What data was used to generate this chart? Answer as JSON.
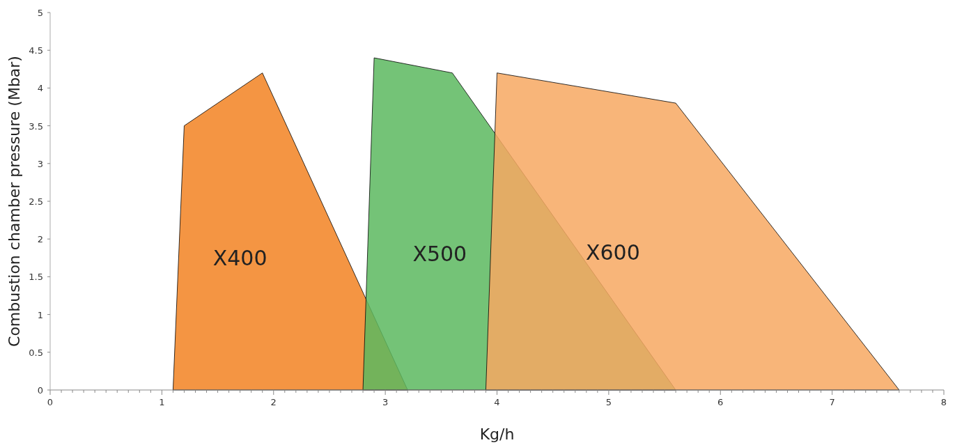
{
  "chart_data": {
    "type": "area",
    "xlabel": "Kg/h",
    "ylabel": "Combustion chamber pressure (Mbar)",
    "series": [
      {
        "name": "X400",
        "color": "#f28322",
        "x": [
          1.1,
          1.2,
          1.9,
          3.2
        ],
        "values": [
          0,
          3.5,
          4.2,
          0
        ]
      },
      {
        "name": "X500",
        "color": "#5cb85f",
        "x": [
          2.8,
          2.9,
          3.6,
          5.6
        ],
        "values": [
          0,
          4.4,
          4.2,
          0
        ]
      },
      {
        "name": "X600",
        "color": "#f7a862",
        "x": [
          3.9,
          4.0,
          5.6,
          7.6
        ],
        "values": [
          0,
          4.2,
          3.8,
          0
        ]
      }
    ],
    "xlim": [
      0,
      8
    ],
    "xticks": [
      0,
      1,
      2,
      3,
      4,
      5,
      6,
      7,
      8
    ],
    "ylim": [
      0,
      5
    ],
    "yticks": [
      0,
      0.5,
      1,
      1.5,
      2,
      2.5,
      3,
      3.5,
      4,
      4.5,
      5
    ],
    "grid": false,
    "legend": false
  }
}
